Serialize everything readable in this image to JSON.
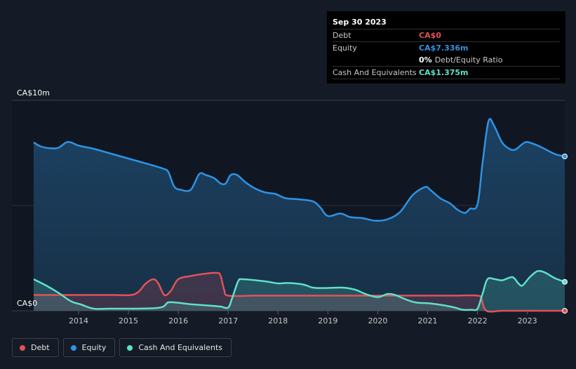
{
  "tooltip": {
    "date": "Sep 30 2023",
    "debt_label": "Debt",
    "debt_value": "CA$0",
    "equity_label": "Equity",
    "equity_value": "CA$7.336m",
    "ratio_value": "0%",
    "ratio_label": "Debt/Equity Ratio",
    "cash_label": "Cash And Equivalents",
    "cash_value": "CA$1.375m"
  },
  "legend": {
    "debt": "Debt",
    "equity": "Equity",
    "cash": "Cash And Equivalents"
  },
  "colors": {
    "debt": "#e0525a",
    "equity": "#2e93e5",
    "cash": "#5fe0c8",
    "background": "#151b26",
    "plot_background": "#111722"
  },
  "chart_data": {
    "type": "area",
    "y_top_label": "CA$10m",
    "y_bottom_label": "CA$0",
    "ylim": [
      0,
      10
    ],
    "xlim": [
      2013.1,
      2023.75
    ],
    "x_ticks": [
      2014,
      2015,
      2016,
      2017,
      2018,
      2019,
      2020,
      2021,
      2022,
      2023
    ],
    "series": [
      {
        "key": "equity",
        "name": "Equity",
        "points": [
          [
            2013.1,
            8.0
          ],
          [
            2013.25,
            7.8
          ],
          [
            2013.45,
            7.72
          ],
          [
            2013.6,
            7.75
          ],
          [
            2013.75,
            8.0
          ],
          [
            2013.85,
            8.0
          ],
          [
            2014.0,
            7.85
          ],
          [
            2014.3,
            7.7
          ],
          [
            2014.6,
            7.5
          ],
          [
            2014.9,
            7.3
          ],
          [
            2015.2,
            7.1
          ],
          [
            2015.5,
            6.9
          ],
          [
            2015.7,
            6.75
          ],
          [
            2015.8,
            6.6
          ],
          [
            2015.92,
            5.9
          ],
          [
            2016.05,
            5.75
          ],
          [
            2016.25,
            5.75
          ],
          [
            2016.42,
            6.5
          ],
          [
            2016.55,
            6.45
          ],
          [
            2016.72,
            6.3
          ],
          [
            2016.85,
            6.05
          ],
          [
            2016.95,
            6.05
          ],
          [
            2017.05,
            6.45
          ],
          [
            2017.18,
            6.45
          ],
          [
            2017.35,
            6.1
          ],
          [
            2017.55,
            5.8
          ],
          [
            2017.75,
            5.62
          ],
          [
            2017.95,
            5.55
          ],
          [
            2018.15,
            5.35
          ],
          [
            2018.4,
            5.3
          ],
          [
            2018.7,
            5.2
          ],
          [
            2018.85,
            4.9
          ],
          [
            2019.0,
            4.5
          ],
          [
            2019.25,
            4.62
          ],
          [
            2019.45,
            4.45
          ],
          [
            2019.7,
            4.4
          ],
          [
            2019.95,
            4.28
          ],
          [
            2020.2,
            4.35
          ],
          [
            2020.45,
            4.7
          ],
          [
            2020.7,
            5.5
          ],
          [
            2020.95,
            5.88
          ],
          [
            2021.05,
            5.75
          ],
          [
            2021.25,
            5.35
          ],
          [
            2021.45,
            5.1
          ],
          [
            2021.6,
            4.8
          ],
          [
            2021.75,
            4.65
          ],
          [
            2021.85,
            4.85
          ],
          [
            2022.0,
            5.05
          ],
          [
            2022.1,
            7.0
          ],
          [
            2022.22,
            9.0
          ],
          [
            2022.33,
            8.8
          ],
          [
            2022.48,
            8.05
          ],
          [
            2022.6,
            7.75
          ],
          [
            2022.75,
            7.65
          ],
          [
            2022.95,
            8.0
          ],
          [
            2023.1,
            7.95
          ],
          [
            2023.3,
            7.75
          ],
          [
            2023.55,
            7.45
          ],
          [
            2023.75,
            7.336
          ]
        ]
      },
      {
        "key": "debt",
        "name": "Debt",
        "points": [
          [
            2013.1,
            0.75
          ],
          [
            2013.5,
            0.75
          ],
          [
            2013.9,
            0.75
          ],
          [
            2014.3,
            0.75
          ],
          [
            2014.7,
            0.75
          ],
          [
            2015.05,
            0.75
          ],
          [
            2015.2,
            0.9
          ],
          [
            2015.35,
            1.3
          ],
          [
            2015.5,
            1.5
          ],
          [
            2015.6,
            1.3
          ],
          [
            2015.72,
            0.75
          ],
          [
            2015.85,
            0.95
          ],
          [
            2016.0,
            1.5
          ],
          [
            2016.25,
            1.65
          ],
          [
            2016.5,
            1.75
          ],
          [
            2016.78,
            1.8
          ],
          [
            2016.85,
            1.65
          ],
          [
            2016.92,
            1.0
          ],
          [
            2017.0,
            0.72
          ],
          [
            2017.5,
            0.72
          ],
          [
            2018.0,
            0.72
          ],
          [
            2018.5,
            0.72
          ],
          [
            2019.0,
            0.72
          ],
          [
            2019.5,
            0.72
          ],
          [
            2020.0,
            0.72
          ],
          [
            2020.5,
            0.72
          ],
          [
            2021.0,
            0.72
          ],
          [
            2021.5,
            0.72
          ],
          [
            2022.0,
            0.72
          ],
          [
            2022.08,
            0.55
          ],
          [
            2022.18,
            0.0
          ],
          [
            2022.5,
            0.0
          ],
          [
            2023.0,
            0.0
          ],
          [
            2023.75,
            0.0
          ]
        ]
      },
      {
        "key": "cash",
        "name": "Cash And Equivalents",
        "points": [
          [
            2013.1,
            1.5
          ],
          [
            2013.35,
            1.2
          ],
          [
            2013.6,
            0.85
          ],
          [
            2013.85,
            0.45
          ],
          [
            2014.05,
            0.3
          ],
          [
            2014.3,
            0.1
          ],
          [
            2014.6,
            0.1
          ],
          [
            2015.0,
            0.1
          ],
          [
            2015.5,
            0.12
          ],
          [
            2015.7,
            0.2
          ],
          [
            2015.8,
            0.4
          ],
          [
            2016.0,
            0.38
          ],
          [
            2016.3,
            0.3
          ],
          [
            2016.6,
            0.25
          ],
          [
            2016.85,
            0.2
          ],
          [
            2017.0,
            0.15
          ],
          [
            2017.08,
            0.6
          ],
          [
            2017.2,
            1.4
          ],
          [
            2017.28,
            1.5
          ],
          [
            2017.55,
            1.45
          ],
          [
            2017.8,
            1.38
          ],
          [
            2018.0,
            1.3
          ],
          [
            2018.2,
            1.32
          ],
          [
            2018.5,
            1.25
          ],
          [
            2018.7,
            1.1
          ],
          [
            2018.95,
            1.08
          ],
          [
            2019.3,
            1.1
          ],
          [
            2019.55,
            1.0
          ],
          [
            2019.75,
            0.8
          ],
          [
            2020.0,
            0.65
          ],
          [
            2020.2,
            0.8
          ],
          [
            2020.35,
            0.75
          ],
          [
            2020.5,
            0.6
          ],
          [
            2020.75,
            0.4
          ],
          [
            2021.05,
            0.35
          ],
          [
            2021.35,
            0.25
          ],
          [
            2021.55,
            0.15
          ],
          [
            2021.7,
            0.05
          ],
          [
            2021.88,
            0.05
          ],
          [
            2022.0,
            0.1
          ],
          [
            2022.1,
            0.8
          ],
          [
            2022.2,
            1.5
          ],
          [
            2022.35,
            1.5
          ],
          [
            2022.5,
            1.45
          ],
          [
            2022.7,
            1.6
          ],
          [
            2022.82,
            1.3
          ],
          [
            2022.9,
            1.2
          ],
          [
            2023.05,
            1.6
          ],
          [
            2023.2,
            1.88
          ],
          [
            2023.35,
            1.82
          ],
          [
            2023.55,
            1.55
          ],
          [
            2023.75,
            1.375
          ]
        ]
      }
    ]
  }
}
